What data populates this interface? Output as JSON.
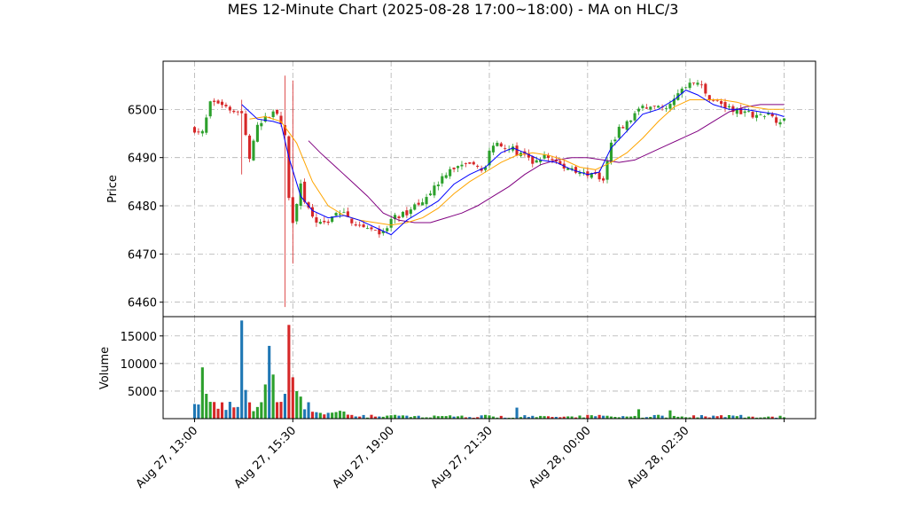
{
  "chart_data": {
    "type": "candlestick",
    "title": "MES 12-Minute Chart (2025-08-28 17:00~18:00) - MA on HLC/3",
    "price_panel": {
      "ylabel": "Price",
      "ylim": [
        6457,
        6510
      ],
      "yticks": [
        6460,
        6470,
        6480,
        6490,
        6500
      ],
      "grid": true
    },
    "volume_panel": {
      "ylabel": "Volume",
      "ylim": [
        0,
        18500
      ],
      "yticks": [
        5000,
        10000,
        15000
      ],
      "ytick_labels": [
        "5000",
        "10000",
        "15000"
      ],
      "grid": true
    },
    "x_ticks": [
      {
        "index": 0,
        "label": "Aug 27, 13:00"
      },
      {
        "index": 25,
        "label": "Aug 27, 15:30"
      },
      {
        "index": 50,
        "label": "Aug 27, 19:00"
      },
      {
        "index": 75,
        "label": "Aug 27, 21:30"
      },
      {
        "index": 100,
        "label": "Aug 28, 00:00"
      },
      {
        "index": 125,
        "label": "Aug 28, 02:30"
      },
      {
        "index": 150,
        "label": ""
      }
    ],
    "x_range": [
      -8,
      158
    ],
    "colors": {
      "up": "#2ca02c",
      "down": "#d62728",
      "vol_up": "#1f77b4",
      "vol_down": "#d62728",
      "ma_fast": "#0000ff",
      "ma_mid": "#ffa500",
      "ma_slow": "#800080"
    },
    "price_anchors": [
      [
        0,
        6496
      ],
      [
        2,
        6495
      ],
      [
        4,
        6501
      ],
      [
        6,
        6501.5
      ],
      [
        8,
        6501
      ],
      [
        10,
        6500
      ],
      [
        12,
        6499
      ],
      [
        13,
        6494
      ],
      [
        14,
        6490
      ],
      [
        16,
        6496
      ],
      [
        18,
        6498
      ],
      [
        20,
        6500
      ],
      [
        21,
        6499.5
      ],
      [
        22,
        6497
      ],
      [
        23,
        6494
      ],
      [
        24,
        6482
      ],
      [
        25,
        6476
      ],
      [
        26,
        6481
      ],
      [
        27,
        6484
      ],
      [
        28,
        6480
      ],
      [
        30,
        6478
      ],
      [
        32,
        6476
      ],
      [
        34,
        6477
      ],
      [
        36,
        6479
      ],
      [
        38,
        6478
      ],
      [
        40,
        6477
      ],
      [
        42,
        6476
      ],
      [
        44,
        6476
      ],
      [
        46,
        6475
      ],
      [
        48,
        6474
      ],
      [
        50,
        6477
      ],
      [
        53,
        6478
      ],
      [
        56,
        6480
      ],
      [
        59,
        6482
      ],
      [
        62,
        6485
      ],
      [
        65,
        6488
      ],
      [
        68,
        6488
      ],
      [
        71,
        6488
      ],
      [
        74,
        6488
      ],
      [
        75,
        6491
      ],
      [
        76,
        6493
      ],
      [
        78,
        6493
      ],
      [
        80,
        6492
      ],
      [
        82,
        6491
      ],
      [
        84,
        6490
      ],
      [
        86,
        6489
      ],
      [
        88,
        6490
      ],
      [
        90,
        6490
      ],
      [
        92,
        6489
      ],
      [
        94,
        6488
      ],
      [
        96,
        6488
      ],
      [
        98,
        6487
      ],
      [
        100,
        6486
      ],
      [
        102,
        6486
      ],
      [
        104,
        6486
      ],
      [
        105,
        6490
      ],
      [
        106,
        6493
      ],
      [
        108,
        6496
      ],
      [
        110,
        6497
      ],
      [
        112,
        6499
      ],
      [
        114,
        6500
      ],
      [
        116,
        6501
      ],
      [
        118,
        6500
      ],
      [
        120,
        6501
      ],
      [
        122,
        6502
      ],
      [
        124,
        6504
      ],
      [
        126,
        6505
      ],
      [
        128,
        6506
      ],
      [
        130,
        6503
      ],
      [
        132,
        6502
      ],
      [
        134,
        6501
      ],
      [
        136,
        6500
      ],
      [
        138,
        6500
      ],
      [
        140,
        6499.5
      ],
      [
        142,
        6499
      ],
      [
        144,
        6499
      ],
      [
        146,
        6498.5
      ],
      [
        148,
        6498
      ],
      [
        150,
        6498
      ]
    ],
    "ma_fast": [
      [
        12,
        6501
      ],
      [
        16,
        6498
      ],
      [
        20,
        6497.5
      ],
      [
        22,
        6497
      ],
      [
        24,
        6490
      ],
      [
        27,
        6482
      ],
      [
        30,
        6479
      ],
      [
        34,
        6477.5
      ],
      [
        38,
        6478
      ],
      [
        42,
        6477
      ],
      [
        46,
        6475.5
      ],
      [
        50,
        6474
      ],
      [
        54,
        6477
      ],
      [
        58,
        6479
      ],
      [
        62,
        6481
      ],
      [
        66,
        6484.5
      ],
      [
        70,
        6486.5
      ],
      [
        74,
        6488
      ],
      [
        78,
        6491
      ],
      [
        81,
        6492
      ],
      [
        84,
        6491
      ],
      [
        88,
        6489.5
      ],
      [
        92,
        6489
      ],
      [
        96,
        6487.5
      ],
      [
        100,
        6486.5
      ],
      [
        103,
        6487
      ],
      [
        106,
        6492
      ],
      [
        110,
        6495.5
      ],
      [
        114,
        6499
      ],
      [
        118,
        6500
      ],
      [
        122,
        6502
      ],
      [
        125,
        6504
      ],
      [
        128,
        6503
      ],
      [
        132,
        6501
      ],
      [
        136,
        6500
      ],
      [
        140,
        6500
      ],
      [
        144,
        6499.5
      ],
      [
        148,
        6499
      ],
      [
        150,
        6498.5
      ]
    ],
    "ma_mid": [
      [
        14,
        6498
      ],
      [
        18,
        6498.5
      ],
      [
        22,
        6497.5
      ],
      [
        26,
        6493
      ],
      [
        30,
        6485
      ],
      [
        34,
        6480
      ],
      [
        38,
        6478
      ],
      [
        42,
        6477
      ],
      [
        46,
        6476.5
      ],
      [
        50,
        6476
      ],
      [
        54,
        6476.5
      ],
      [
        58,
        6477.5
      ],
      [
        62,
        6479.5
      ],
      [
        66,
        6482.5
      ],
      [
        70,
        6485
      ],
      [
        74,
        6487
      ],
      [
        78,
        6489
      ],
      [
        82,
        6490.5
      ],
      [
        86,
        6491
      ],
      [
        90,
        6490.5
      ],
      [
        94,
        6489.5
      ],
      [
        98,
        6488
      ],
      [
        102,
        6487.5
      ],
      [
        106,
        6489
      ],
      [
        110,
        6491
      ],
      [
        114,
        6494
      ],
      [
        118,
        6497.5
      ],
      [
        122,
        6500.5
      ],
      [
        126,
        6502
      ],
      [
        130,
        6502
      ],
      [
        134,
        6502
      ],
      [
        138,
        6501.5
      ],
      [
        142,
        6500.5
      ],
      [
        146,
        6500
      ],
      [
        150,
        6500
      ]
    ],
    "ma_slow": [
      [
        29,
        6493.5
      ],
      [
        32,
        6491
      ],
      [
        36,
        6488
      ],
      [
        40,
        6485
      ],
      [
        44,
        6482
      ],
      [
        48,
        6478.5
      ],
      [
        52,
        6477
      ],
      [
        56,
        6476.5
      ],
      [
        60,
        6476.5
      ],
      [
        64,
        6477.5
      ],
      [
        68,
        6478.5
      ],
      [
        72,
        6480
      ],
      [
        76,
        6482
      ],
      [
        80,
        6484
      ],
      [
        84,
        6486.5
      ],
      [
        88,
        6488.5
      ],
      [
        92,
        6489.5
      ],
      [
        96,
        6490
      ],
      [
        100,
        6490
      ],
      [
        104,
        6489.5
      ],
      [
        108,
        6489
      ],
      [
        112,
        6489.5
      ],
      [
        116,
        6491
      ],
      [
        120,
        6492.5
      ],
      [
        124,
        6494
      ],
      [
        128,
        6495.5
      ],
      [
        132,
        6497.5
      ],
      [
        136,
        6499.5
      ],
      [
        140,
        6500.5
      ],
      [
        144,
        6501
      ],
      [
        148,
        6501
      ],
      [
        150,
        6501
      ]
    ],
    "price_spikes": [
      {
        "index": 12,
        "high": 6502,
        "low": 6486.5
      },
      {
        "index": 23,
        "high": 6507,
        "low": 6459
      },
      {
        "index": 25,
        "high": 6506,
        "low": 6468
      }
    ],
    "volume_spikes": [
      {
        "index": 2,
        "value": 9300
      },
      {
        "index": 3,
        "value": 4500
      },
      {
        "index": 12,
        "value": 17800
      },
      {
        "index": 13,
        "value": 5200
      },
      {
        "index": 18,
        "value": 6200
      },
      {
        "index": 19,
        "value": 13200
      },
      {
        "index": 20,
        "value": 8000
      },
      {
        "index": 23,
        "value": 4500
      },
      {
        "index": 24,
        "value": 17000
      },
      {
        "index": 25,
        "value": 7500
      },
      {
        "index": 26,
        "value": 5000
      },
      {
        "index": 27,
        "value": 4000
      },
      {
        "index": 82,
        "value": 2000
      },
      {
        "index": 113,
        "value": 1700
      },
      {
        "index": 121,
        "value": 1500
      }
    ]
  }
}
